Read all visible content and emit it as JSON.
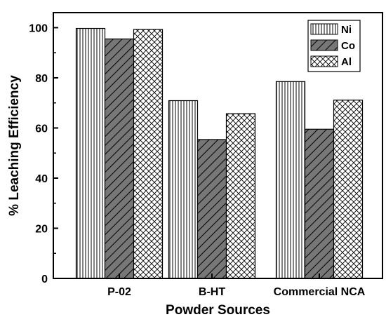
{
  "chart_data": {
    "type": "bar",
    "title": "",
    "xlabel": "Powder Sources",
    "ylabel": "% Leaching Efficiency",
    "categories": [
      "P-02",
      "B-HT",
      "Commercial NCA"
    ],
    "ylim": [
      0,
      106
    ],
    "yticks": [
      0,
      20,
      40,
      60,
      80,
      100
    ],
    "grid": false,
    "legend_position": "top-right",
    "series": [
      {
        "name": "Ni",
        "values": [
          99.7,
          70.9,
          78.5
        ],
        "pattern": "vertical-lines",
        "color": "#ffffff"
      },
      {
        "name": "Co",
        "values": [
          95.5,
          55.4,
          59.5
        ],
        "pattern": "diagonal-hatch",
        "color": "#777777"
      },
      {
        "name": "Al",
        "values": [
          99.3,
          65.7,
          71.1
        ],
        "pattern": "crosshatch",
        "color": "#ffffff"
      }
    ]
  }
}
